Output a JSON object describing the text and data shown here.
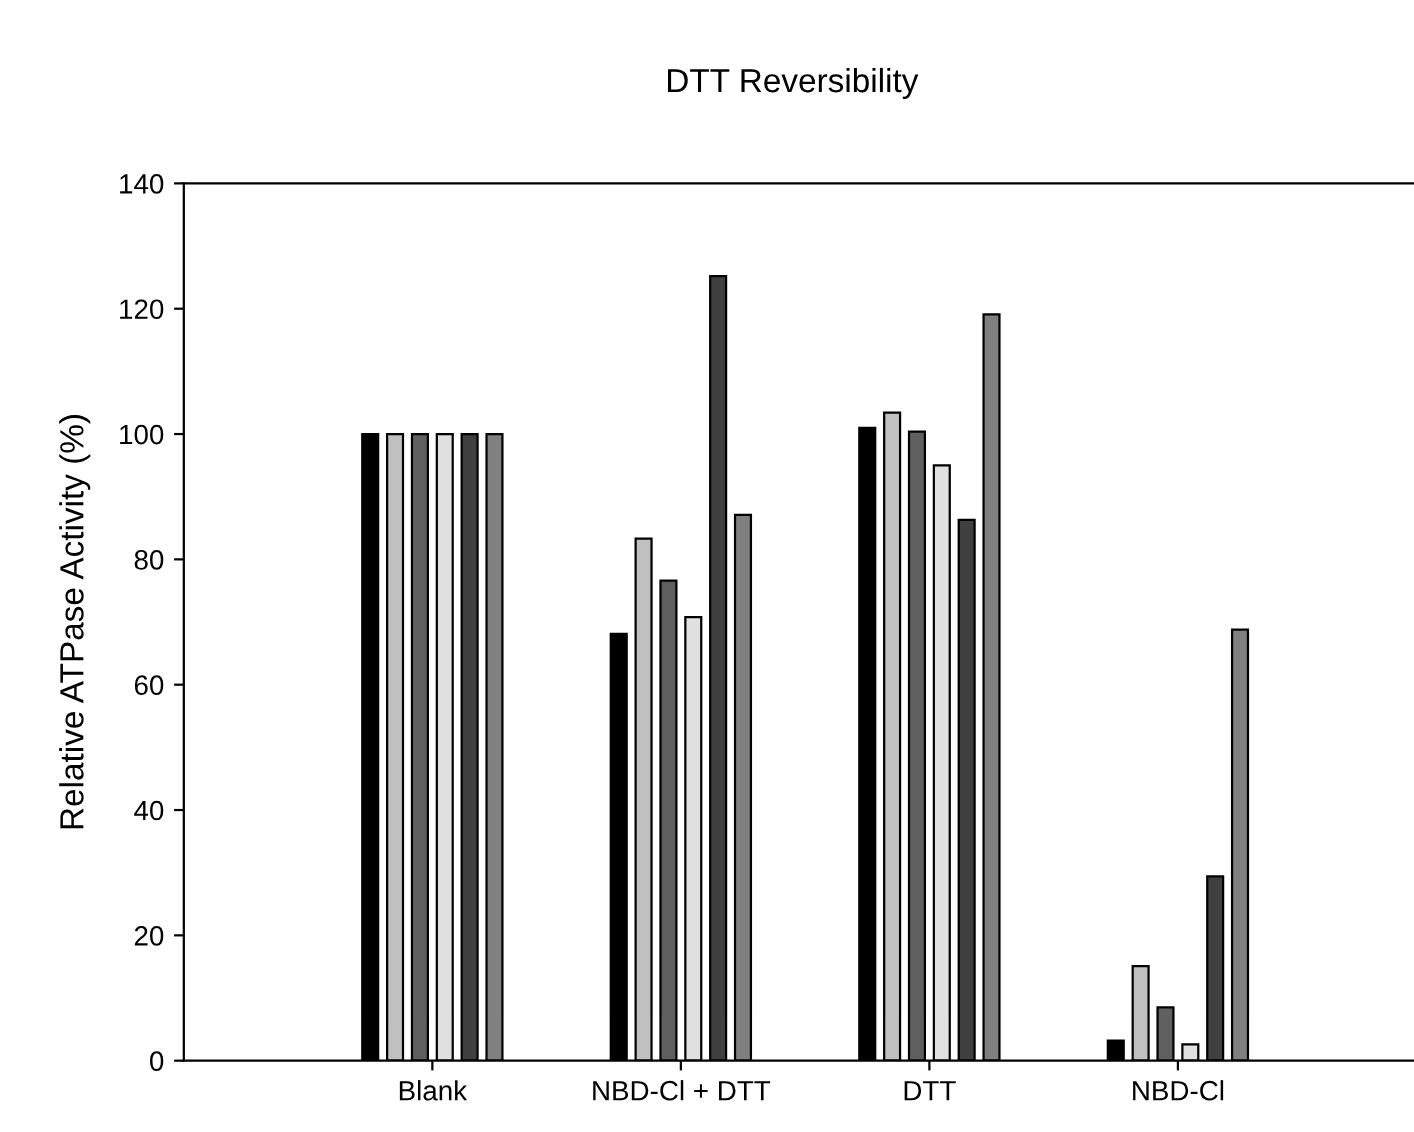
{
  "chart_data": {
    "type": "bar",
    "title": "DTT Reversibility",
    "ylabel": "Relative ATPase Activity (%)",
    "categories": [
      "Blank",
      "NBD-Cl + DTT",
      "DTT",
      "NBD-Cl"
    ],
    "series": [
      {
        "color": "#000000",
        "values": [
          100,
          68.1,
          101.0,
          3.2
        ]
      },
      {
        "color": "#c0c0c0",
        "values": [
          100,
          83.3,
          103.4,
          15.1
        ]
      },
      {
        "color": "#606060",
        "values": [
          100,
          76.6,
          100.4,
          8.5
        ]
      },
      {
        "color": "#e0e0e0",
        "values": [
          100,
          70.8,
          95.0,
          2.6
        ]
      },
      {
        "color": "#404040",
        "values": [
          100,
          125.2,
          86.3,
          29.4
        ]
      },
      {
        "color": "#808080",
        "values": [
          100,
          87.1,
          119.1,
          68.8
        ]
      }
    ],
    "ylim": [
      0,
      140
    ],
    "yticks": [
      0,
      20,
      40,
      60,
      80,
      100,
      120,
      140
    ]
  }
}
